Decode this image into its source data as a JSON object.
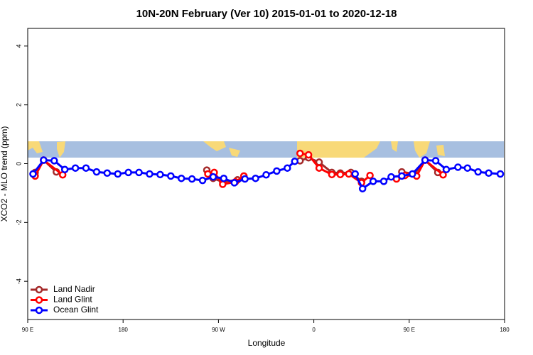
{
  "chart_data": {
    "type": "line",
    "title": "10N-20N February (Ver 10)   2015-01-01 to 2020-12-18",
    "x_label": "Longitude",
    "y_label": "XCO2 - MLO trend (ppm)",
    "xlim": [
      90,
      540
    ],
    "xticks": [
      {
        "value": 90,
        "label": "90 E"
      },
      {
        "value": 180,
        "label": "180"
      },
      {
        "value": 270,
        "label": "90 W"
      },
      {
        "value": 360,
        "label": "0"
      },
      {
        "value": 450,
        "label": "90 E"
      },
      {
        "value": 540,
        "label": "180"
      }
    ],
    "ylim": [
      -5.3,
      4.6
    ],
    "yticks": [
      -4,
      -2,
      0,
      2,
      4
    ],
    "legend": "bottom-left",
    "series": [
      {
        "name": "Land Nadir",
        "color": "#a52a2a",
        "x": [
          97,
          105,
          117,
          null,
          259,
          265,
          274,
          288,
          null,
          347,
          355,
          365,
          377,
          385,
          395,
          405,
          null,
          443,
          455,
          465,
          477
        ],
        "values": [
          -0.3,
          0.12,
          -0.28,
          null,
          -0.22,
          -0.5,
          -0.62,
          -0.55,
          null,
          0.1,
          0.2,
          0.05,
          -0.3,
          -0.32,
          -0.3,
          -0.6,
          null,
          -0.28,
          -0.35,
          0.12,
          -0.3
        ]
      },
      {
        "name": "Land Glint",
        "color": "#ff0000",
        "x": [
          97,
          105,
          123,
          null,
          260,
          266,
          274,
          286,
          294,
          null,
          347,
          355,
          365,
          377,
          385,
          393,
          405,
          413,
          null,
          438,
          446,
          457,
          465,
          482
        ],
        "values": [
          -0.42,
          0.12,
          -0.38,
          null,
          -0.35,
          -0.3,
          -0.7,
          -0.62,
          -0.42,
          null,
          0.35,
          0.3,
          -0.15,
          -0.37,
          -0.37,
          -0.35,
          -0.65,
          -0.4,
          null,
          -0.52,
          -0.4,
          -0.42,
          0.12,
          -0.38
        ]
      },
      {
        "name": "Ocean Glint",
        "color": "#0000ff",
        "x": [
          95,
          105,
          115,
          125,
          135,
          145,
          155,
          165,
          175,
          185,
          195,
          205,
          215,
          225,
          235,
          245,
          255,
          265,
          275,
          285,
          295,
          305,
          315,
          325,
          335,
          342,
          null,
          399,
          406,
          416,
          426,
          433,
          443,
          453,
          465,
          475,
          485,
          496,
          505,
          515,
          525,
          536
        ],
        "values": [
          -0.35,
          0.12,
          0.1,
          -0.2,
          -0.15,
          -0.15,
          -0.28,
          -0.32,
          -0.35,
          -0.3,
          -0.3,
          -0.35,
          -0.37,
          -0.42,
          -0.5,
          -0.52,
          -0.57,
          -0.45,
          -0.5,
          -0.65,
          -0.52,
          -0.5,
          -0.38,
          -0.25,
          -0.15,
          0.08,
          null,
          -0.35,
          -0.85,
          -0.6,
          -0.6,
          -0.45,
          -0.42,
          -0.35,
          0.12,
          0.1,
          -0.2,
          -0.12,
          -0.15,
          -0.28,
          -0.32,
          -0.35
        ]
      }
    ]
  }
}
